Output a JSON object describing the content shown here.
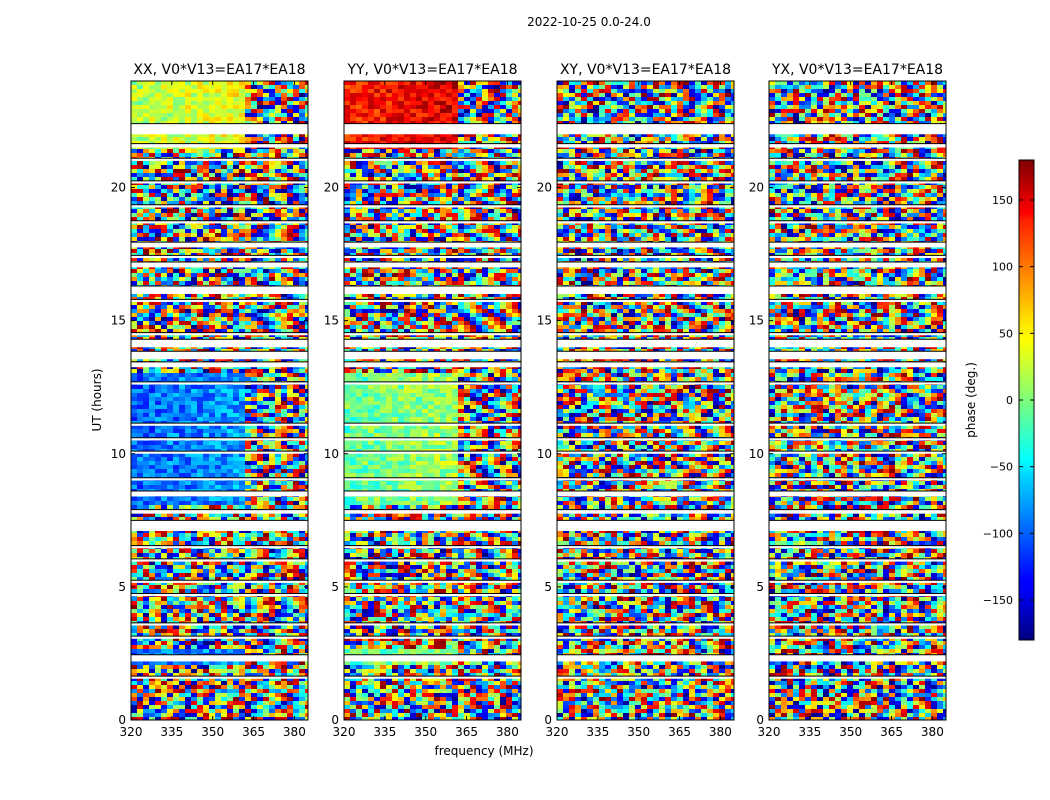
{
  "figure": {
    "suptitle": "2022-10-25 0.0-24.0"
  },
  "chart_data": {
    "type": "heatmap",
    "ylabel": "UT (hours)",
    "xlabel": "frequency (MHz)",
    "xlim": [
      320,
      385
    ],
    "ylim": [
      0,
      24
    ],
    "xticks": [
      320,
      335,
      350,
      365,
      380
    ],
    "yticks": [
      0,
      5,
      10,
      15,
      20
    ],
    "panels": [
      {
        "title": "XX, V0*V13=EA17*EA18",
        "polarization": "XX"
      },
      {
        "title": "YY, V0*V13=EA17*EA18",
        "polarization": "YY"
      },
      {
        "title": "XY, V0*V13=EA17*EA18",
        "polarization": "XY"
      },
      {
        "title": "YX, V0*V13=EA17*EA18",
        "polarization": "YX"
      }
    ],
    "colorbar": {
      "label": "phase (deg.)",
      "range": [
        -180,
        180
      ],
      "ticks": [
        -150,
        -100,
        -50,
        0,
        50,
        100,
        150
      ],
      "colormap": "jet"
    },
    "flagged_ut_bands": [
      [
        2.2,
        2.45
      ],
      [
        1.55,
        1.65
      ],
      [
        3.05,
        3.15
      ],
      [
        3.55,
        3.65
      ],
      [
        4.65,
        4.75
      ],
      [
        5.15,
        5.25
      ],
      [
        5.95,
        6.05
      ],
      [
        6.45,
        6.55
      ],
      [
        7.1,
        7.5
      ],
      [
        7.75,
        7.9
      ],
      [
        8.4,
        8.6
      ],
      [
        9.0,
        9.1
      ],
      [
        10.0,
        10.1
      ],
      [
        10.5,
        10.6
      ],
      [
        11.05,
        11.15
      ],
      [
        12.6,
        12.7
      ],
      [
        13.25,
        13.45
      ],
      [
        13.55,
        13.85
      ],
      [
        14.0,
        14.3
      ],
      [
        14.45,
        14.55
      ],
      [
        15.7,
        15.8
      ],
      [
        16.0,
        16.3
      ],
      [
        17.0,
        17.2
      ],
      [
        17.35,
        17.45
      ],
      [
        17.75,
        17.95
      ],
      [
        18.65,
        18.75
      ],
      [
        19.25,
        19.35
      ],
      [
        20.15,
        20.25
      ],
      [
        21.0,
        21.1
      ],
      [
        21.5,
        21.65
      ],
      [
        22.0,
        22.4
      ]
    ]
  }
}
